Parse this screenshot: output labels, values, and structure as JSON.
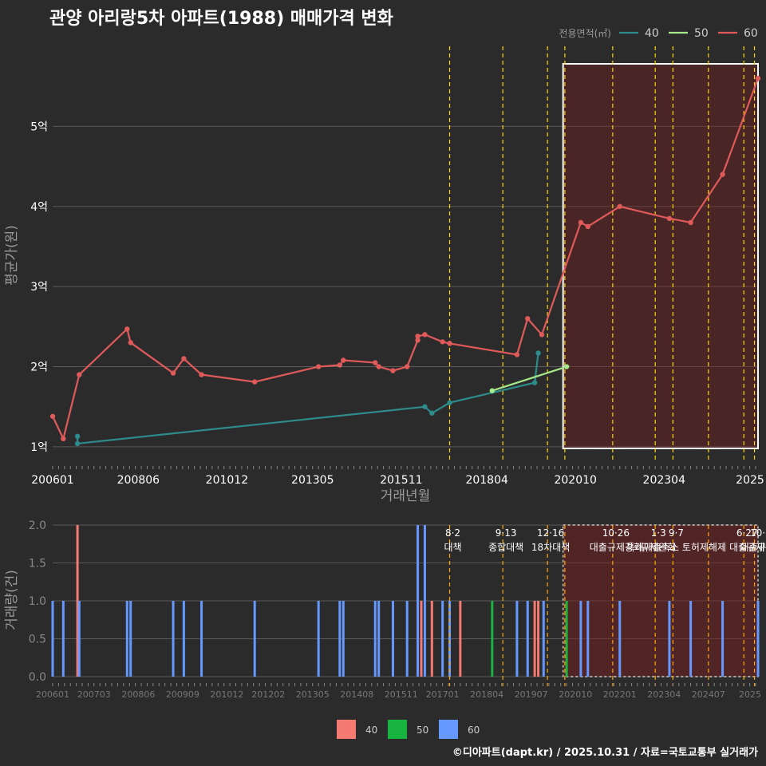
{
  "title": "관양 아리랑5차 아파트(1988) 매매가격 변화",
  "footer": "©디아파트(dapt.kr) / 2025.10.31 / 자료=국토교통부 실거래가",
  "colors": {
    "s40": "#2e8b8b",
    "s50": "#a6e88a",
    "s60": "#e05a5a",
    "b40": "#f47a72",
    "b50": "#17b43f",
    "b60": "#6699ff",
    "vline": "#ffd700",
    "vline2": "#ffa500"
  },
  "chart_data": [
    {
      "type": "line",
      "title": "관양 아리랑5차 아파트(1988) 매매가격 변화",
      "xlabel": "거래년월",
      "ylabel": "평균가(원)",
      "xlim": [
        2006.0,
        2025.9
      ],
      "ylim": [
        0.8,
        6.0
      ],
      "legend_title": "전용면적(㎡)",
      "xtick_labels": [
        "200601",
        "200806",
        "201012",
        "201305",
        "201511",
        "201804",
        "202010",
        "202304",
        "2025"
      ],
      "ytick_labels": [
        "1억",
        "2억",
        "3억",
        "4억",
        "5억"
      ],
      "ytick_values": [
        1,
        2,
        3,
        4,
        5
      ],
      "series": [
        {
          "name": "40",
          "points": [
            [
              2006.7,
              1.13
            ],
            [
              2006.7,
              1.04
            ],
            [
              2016.5,
              1.5
            ],
            [
              2016.7,
              1.42
            ],
            [
              2017.2,
              1.55
            ],
            [
              2019.6,
              1.8
            ],
            [
              2019.7,
              2.17
            ]
          ]
        },
        {
          "name": "50",
          "points": [
            [
              2018.4,
              1.7
            ],
            [
              2020.5,
              2.0
            ]
          ]
        },
        {
          "name": "60",
          "points": [
            [
              2006.0,
              1.38
            ],
            [
              2006.3,
              1.1
            ],
            [
              2006.75,
              1.9
            ],
            [
              2008.1,
              2.47
            ],
            [
              2008.2,
              2.3
            ],
            [
              2009.4,
              1.92
            ],
            [
              2009.7,
              2.1
            ],
            [
              2010.2,
              1.9
            ],
            [
              2011.7,
              1.81
            ],
            [
              2013.5,
              2.0
            ],
            [
              2014.1,
              2.02
            ],
            [
              2014.2,
              2.08
            ],
            [
              2015.1,
              2.05
            ],
            [
              2015.2,
              2.0
            ],
            [
              2015.6,
              1.95
            ],
            [
              2016.0,
              2.0
            ],
            [
              2016.3,
              2.33
            ],
            [
              2016.3,
              2.38
            ],
            [
              2016.5,
              2.4
            ],
            [
              2017.0,
              2.31
            ],
            [
              2017.2,
              2.29
            ],
            [
              2019.1,
              2.15
            ],
            [
              2019.4,
              2.6
            ],
            [
              2019.8,
              2.4
            ],
            [
              2020.9,
              3.8
            ],
            [
              2021.1,
              3.75
            ],
            [
              2022.0,
              4.0
            ],
            [
              2023.4,
              3.85
            ],
            [
              2024.0,
              3.8
            ],
            [
              2024.9,
              4.4
            ],
            [
              2025.9,
              5.6
            ]
          ]
        }
      ],
      "highlight_range": [
        2020.4,
        2025.9
      ],
      "policy_lines": [
        2017.2,
        2018.7,
        2019.96,
        2020.45,
        2021.8,
        2023.0,
        2023.5,
        2024.5,
        2025.5,
        2025.8
      ]
    },
    {
      "type": "bar",
      "title": "",
      "xlabel": "",
      "ylabel": "거래량(건)",
      "xlim": [
        2006.0,
        2025.9
      ],
      "ylim": [
        0,
        2.0
      ],
      "xtick_labels": [
        "200601",
        "200703",
        "200806",
        "200909",
        "201012",
        "201202",
        "201305",
        "201408",
        "201511",
        "201701",
        "201804",
        "201907",
        "202010",
        "202201",
        "202304",
        "202407",
        "2025"
      ],
      "ytick_labels": [
        "0.0",
        "0.5",
        "1.0",
        "1.5",
        "2.0"
      ],
      "ytick_values": [
        0,
        0.5,
        1.0,
        1.5,
        2.0
      ],
      "legend": [
        "40",
        "50",
        "60"
      ],
      "bars": [
        {
          "x": 2006.0,
          "v": 1,
          "s": "60"
        },
        {
          "x": 2006.3,
          "v": 1,
          "s": "60"
        },
        {
          "x": 2006.7,
          "v": 2,
          "s": "40"
        },
        {
          "x": 2006.75,
          "v": 1,
          "s": "60"
        },
        {
          "x": 2008.1,
          "v": 1,
          "s": "60"
        },
        {
          "x": 2008.2,
          "v": 1,
          "s": "60"
        },
        {
          "x": 2009.4,
          "v": 1,
          "s": "60"
        },
        {
          "x": 2009.7,
          "v": 1,
          "s": "60"
        },
        {
          "x": 2010.2,
          "v": 1,
          "s": "60"
        },
        {
          "x": 2011.7,
          "v": 1,
          "s": "60"
        },
        {
          "x": 2013.5,
          "v": 1,
          "s": "60"
        },
        {
          "x": 2014.1,
          "v": 1,
          "s": "60"
        },
        {
          "x": 2014.2,
          "v": 1,
          "s": "60"
        },
        {
          "x": 2015.1,
          "v": 1,
          "s": "60"
        },
        {
          "x": 2015.2,
          "v": 1,
          "s": "60"
        },
        {
          "x": 2015.6,
          "v": 1,
          "s": "60"
        },
        {
          "x": 2016.0,
          "v": 1,
          "s": "60"
        },
        {
          "x": 2016.3,
          "v": 2,
          "s": "60"
        },
        {
          "x": 2016.4,
          "v": 1,
          "s": "40"
        },
        {
          "x": 2016.5,
          "v": 2,
          "s": "60"
        },
        {
          "x": 2016.7,
          "v": 1,
          "s": "40"
        },
        {
          "x": 2017.0,
          "v": 1,
          "s": "60"
        },
        {
          "x": 2017.2,
          "v": 1,
          "s": "60"
        },
        {
          "x": 2017.5,
          "v": 1,
          "s": "40"
        },
        {
          "x": 2018.4,
          "v": 1,
          "s": "50"
        },
        {
          "x": 2019.1,
          "v": 1,
          "s": "60"
        },
        {
          "x": 2019.4,
          "v": 1,
          "s": "60"
        },
        {
          "x": 2019.6,
          "v": 1,
          "s": "40"
        },
        {
          "x": 2019.7,
          "v": 1,
          "s": "40"
        },
        {
          "x": 2019.85,
          "v": 1,
          "s": "60"
        },
        {
          "x": 2020.5,
          "v": 1,
          "s": "50"
        },
        {
          "x": 2020.9,
          "v": 1,
          "s": "60"
        },
        {
          "x": 2021.1,
          "v": 1,
          "s": "60"
        },
        {
          "x": 2022.0,
          "v": 1,
          "s": "60"
        },
        {
          "x": 2023.4,
          "v": 1,
          "s": "60"
        },
        {
          "x": 2024.0,
          "v": 1,
          "s": "60"
        },
        {
          "x": 2024.9,
          "v": 1,
          "s": "60"
        },
        {
          "x": 2025.9,
          "v": 1,
          "s": "60"
        }
      ],
      "highlight_range": [
        2020.4,
        2025.9
      ],
      "policy_lines": [
        2017.2,
        2018.7,
        2019.96,
        2020.45,
        2021.8,
        2023.0,
        2023.5,
        2024.5,
        2025.5,
        2025.8
      ],
      "annotations": [
        {
          "x": 2017.2,
          "date": "8·2",
          "text": "대책"
        },
        {
          "x": 2018.7,
          "date": "9·13",
          "text": "종합대책"
        },
        {
          "x": 2019.96,
          "date": "12·16",
          "text": "18차대책"
        },
        {
          "x": 2021.8,
          "date": "10·26",
          "text": "대출규제강화"
        },
        {
          "x": 2023.0,
          "date": "1·3",
          "text": "규제완화"
        },
        {
          "x": 2023.5,
          "date": "9·7",
          "text": "특례대출축소 토허제해제"
        },
        {
          "x": 2025.5,
          "date": "6·27",
          "text": "대출규제"
        },
        {
          "x": 2025.8,
          "date": "10·",
          "text": "대출규제"
        }
      ]
    }
  ]
}
